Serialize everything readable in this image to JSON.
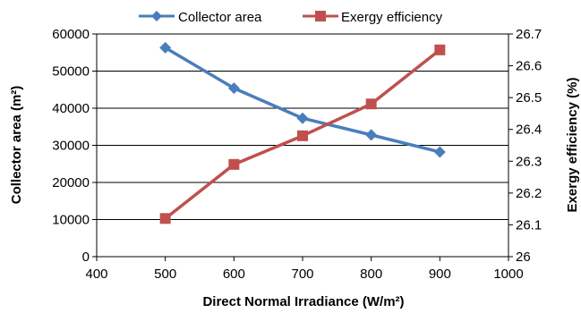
{
  "chart_data": {
    "type": "line",
    "x": [
      500,
      600,
      700,
      800,
      900
    ],
    "series": [
      {
        "name": "Collector area",
        "axis": "left",
        "values": [
          56300,
          45400,
          37300,
          32800,
          28200
        ],
        "color": "#4a7ebb",
        "marker": "diamond"
      },
      {
        "name": "Exergy efficiency",
        "axis": "right",
        "values": [
          26.12,
          26.29,
          26.38,
          26.48,
          26.65
        ],
        "color": "#c0504d",
        "marker": "square"
      }
    ],
    "xlabel": "Direct Normal Irradiance (W/m²)",
    "ylabel": "Collector area (m²)",
    "y2label": "Exergy efficiency (%)",
    "xlim": [
      400,
      1000
    ],
    "ylim": [
      0,
      60000
    ],
    "y2lim": [
      26,
      26.7
    ],
    "xticks": [
      "400",
      "500",
      "600",
      "700",
      "800",
      "900",
      "1000"
    ],
    "yticks": [
      "0",
      "10000",
      "20000",
      "30000",
      "40000",
      "50000",
      "60000"
    ],
    "y2ticks": [
      "26",
      "26.1",
      "26.2",
      "26.3",
      "26.4",
      "26.5",
      "26.6",
      "26.7"
    ],
    "grid": "horizontal",
    "legend": "top"
  }
}
